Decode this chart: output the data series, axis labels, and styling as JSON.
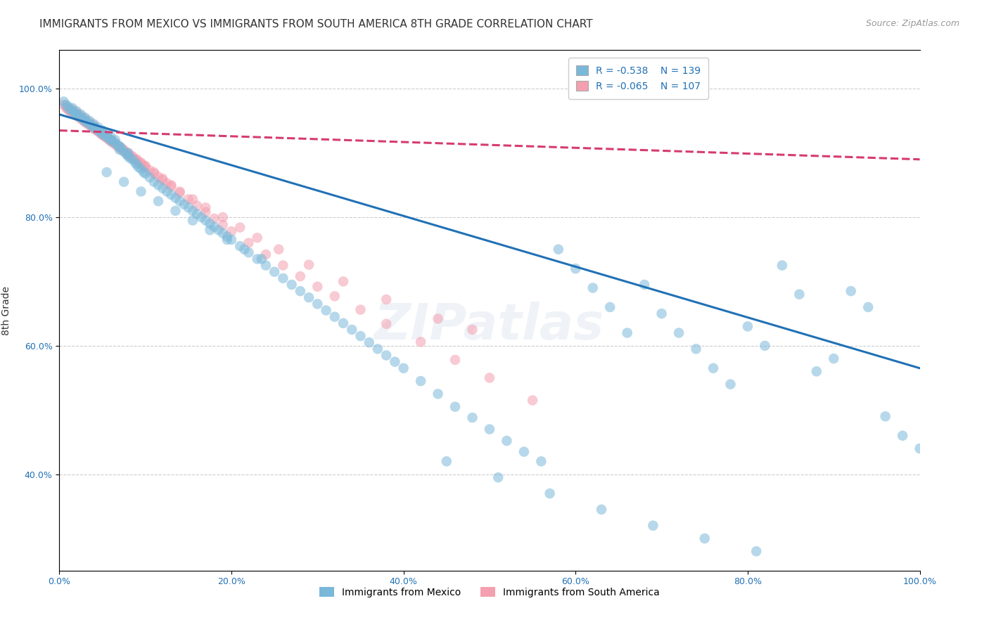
{
  "title": "IMMIGRANTS FROM MEXICO VS IMMIGRANTS FROM SOUTH AMERICA 8TH GRADE CORRELATION CHART",
  "source": "Source: ZipAtlas.com",
  "ylabel": "8th Grade",
  "xlim": [
    0.0,
    1.0
  ],
  "ylim": [
    0.25,
    1.06
  ],
  "ytick_labels": [
    "40.0%",
    "60.0%",
    "80.0%",
    "100.0%"
  ],
  "ytick_values": [
    0.4,
    0.6,
    0.8,
    1.0
  ],
  "xtick_labels": [
    "0.0%",
    "20.0%",
    "40.0%",
    "60.0%",
    "80.0%",
    "100.0%"
  ],
  "xtick_values": [
    0.0,
    0.2,
    0.4,
    0.6,
    0.8,
    1.0
  ],
  "blue_R": -0.538,
  "blue_N": 139,
  "pink_R": -0.065,
  "pink_N": 107,
  "blue_color": "#7ab8d9",
  "pink_color": "#f4a0b0",
  "blue_line_color": "#2171b5",
  "pink_line_color": "#d63b6e",
  "watermark": "ZIPatlas",
  "blue_scatter_x": [
    0.005,
    0.008,
    0.01,
    0.012,
    0.015,
    0.015,
    0.018,
    0.02,
    0.02,
    0.022,
    0.025,
    0.025,
    0.028,
    0.03,
    0.03,
    0.032,
    0.035,
    0.035,
    0.038,
    0.04,
    0.04,
    0.042,
    0.045,
    0.045,
    0.048,
    0.05,
    0.05,
    0.052,
    0.055,
    0.055,
    0.058,
    0.06,
    0.06,
    0.062,
    0.065,
    0.065,
    0.068,
    0.07,
    0.07,
    0.072,
    0.075,
    0.078,
    0.08,
    0.08,
    0.082,
    0.085,
    0.088,
    0.09,
    0.092,
    0.095,
    0.098,
    0.1,
    0.105,
    0.11,
    0.115,
    0.12,
    0.125,
    0.13,
    0.135,
    0.14,
    0.145,
    0.15,
    0.155,
    0.16,
    0.165,
    0.17,
    0.175,
    0.18,
    0.185,
    0.19,
    0.195,
    0.2,
    0.21,
    0.22,
    0.23,
    0.24,
    0.25,
    0.26,
    0.27,
    0.28,
    0.29,
    0.3,
    0.31,
    0.32,
    0.33,
    0.34,
    0.35,
    0.36,
    0.37,
    0.38,
    0.39,
    0.4,
    0.42,
    0.44,
    0.46,
    0.48,
    0.5,
    0.52,
    0.54,
    0.56,
    0.58,
    0.6,
    0.62,
    0.64,
    0.66,
    0.68,
    0.7,
    0.72,
    0.74,
    0.76,
    0.78,
    0.8,
    0.82,
    0.84,
    0.86,
    0.88,
    0.9,
    0.92,
    0.94,
    0.96,
    0.98,
    1.0,
    0.45,
    0.51,
    0.57,
    0.63,
    0.69,
    0.75,
    0.81,
    0.055,
    0.075,
    0.095,
    0.115,
    0.135,
    0.155,
    0.175,
    0.195,
    0.215,
    0.235
  ],
  "blue_scatter_y": [
    0.98,
    0.975,
    0.972,
    0.968,
    0.965,
    0.97,
    0.962,
    0.96,
    0.965,
    0.958,
    0.955,
    0.96,
    0.952,
    0.95,
    0.955,
    0.948,
    0.945,
    0.95,
    0.942,
    0.94,
    0.945,
    0.938,
    0.935,
    0.94,
    0.932,
    0.93,
    0.935,
    0.928,
    0.925,
    0.93,
    0.922,
    0.92,
    0.925,
    0.918,
    0.915,
    0.92,
    0.912,
    0.91,
    0.905,
    0.908,
    0.902,
    0.898,
    0.895,
    0.9,
    0.892,
    0.89,
    0.885,
    0.882,
    0.878,
    0.875,
    0.87,
    0.868,
    0.862,
    0.855,
    0.85,
    0.845,
    0.84,
    0.835,
    0.83,
    0.825,
    0.82,
    0.815,
    0.81,
    0.805,
    0.8,
    0.795,
    0.79,
    0.785,
    0.78,
    0.775,
    0.77,
    0.765,
    0.755,
    0.745,
    0.735,
    0.725,
    0.715,
    0.705,
    0.695,
    0.685,
    0.675,
    0.665,
    0.655,
    0.645,
    0.635,
    0.625,
    0.615,
    0.605,
    0.595,
    0.585,
    0.575,
    0.565,
    0.545,
    0.525,
    0.505,
    0.488,
    0.47,
    0.452,
    0.435,
    0.42,
    0.75,
    0.72,
    0.69,
    0.66,
    0.62,
    0.695,
    0.65,
    0.62,
    0.595,
    0.565,
    0.54,
    0.63,
    0.6,
    0.725,
    0.68,
    0.56,
    0.58,
    0.685,
    0.66,
    0.49,
    0.46,
    0.44,
    0.42,
    0.395,
    0.37,
    0.345,
    0.32,
    0.3,
    0.28,
    0.87,
    0.855,
    0.84,
    0.825,
    0.81,
    0.795,
    0.78,
    0.765,
    0.75,
    0.735
  ],
  "pink_scatter_x": [
    0.005,
    0.008,
    0.01,
    0.012,
    0.015,
    0.015,
    0.018,
    0.02,
    0.02,
    0.022,
    0.025,
    0.025,
    0.028,
    0.03,
    0.03,
    0.032,
    0.035,
    0.035,
    0.038,
    0.04,
    0.04,
    0.042,
    0.045,
    0.048,
    0.05,
    0.052,
    0.055,
    0.058,
    0.06,
    0.062,
    0.065,
    0.068,
    0.07,
    0.072,
    0.075,
    0.078,
    0.08,
    0.082,
    0.085,
    0.088,
    0.09,
    0.092,
    0.095,
    0.098,
    0.1,
    0.105,
    0.11,
    0.115,
    0.12,
    0.125,
    0.13,
    0.14,
    0.15,
    0.16,
    0.17,
    0.18,
    0.19,
    0.2,
    0.22,
    0.24,
    0.26,
    0.28,
    0.3,
    0.32,
    0.35,
    0.38,
    0.42,
    0.46,
    0.5,
    0.55,
    0.008,
    0.012,
    0.016,
    0.02,
    0.024,
    0.028,
    0.032,
    0.036,
    0.04,
    0.044,
    0.048,
    0.052,
    0.056,
    0.06,
    0.065,
    0.07,
    0.075,
    0.08,
    0.085,
    0.09,
    0.095,
    0.1,
    0.11,
    0.12,
    0.13,
    0.14,
    0.155,
    0.17,
    0.19,
    0.21,
    0.23,
    0.255,
    0.29,
    0.33,
    0.38,
    0.44,
    0.48
  ],
  "pink_scatter_y": [
    0.975,
    0.97,
    0.968,
    0.965,
    0.963,
    0.968,
    0.96,
    0.958,
    0.963,
    0.956,
    0.953,
    0.958,
    0.95,
    0.948,
    0.953,
    0.946,
    0.943,
    0.948,
    0.94,
    0.938,
    0.943,
    0.936,
    0.933,
    0.93,
    0.928,
    0.926,
    0.923,
    0.92,
    0.918,
    0.916,
    0.913,
    0.91,
    0.908,
    0.906,
    0.903,
    0.9,
    0.898,
    0.896,
    0.893,
    0.89,
    0.888,
    0.886,
    0.883,
    0.88,
    0.878,
    0.873,
    0.868,
    0.863,
    0.858,
    0.853,
    0.848,
    0.838,
    0.828,
    0.818,
    0.808,
    0.798,
    0.788,
    0.778,
    0.76,
    0.742,
    0.725,
    0.708,
    0.692,
    0.677,
    0.656,
    0.634,
    0.606,
    0.578,
    0.55,
    0.515,
    0.972,
    0.968,
    0.964,
    0.96,
    0.956,
    0.952,
    0.948,
    0.944,
    0.94,
    0.936,
    0.932,
    0.928,
    0.924,
    0.92,
    0.915,
    0.91,
    0.905,
    0.9,
    0.895,
    0.89,
    0.885,
    0.88,
    0.87,
    0.86,
    0.85,
    0.84,
    0.828,
    0.815,
    0.8,
    0.784,
    0.768,
    0.75,
    0.726,
    0.7,
    0.672,
    0.642,
    0.625
  ],
  "blue_line_x0": 0.0,
  "blue_line_y0": 0.96,
  "blue_line_x1": 1.0,
  "blue_line_y1": 0.565,
  "pink_line_x0": 0.0,
  "pink_line_y0": 0.935,
  "pink_line_x1": 1.0,
  "pink_line_y1": 0.89,
  "grid_color": "#c8c8c8",
  "background_color": "#ffffff",
  "title_fontsize": 11,
  "axis_label_fontsize": 10,
  "tick_fontsize": 9,
  "legend_fontsize": 10,
  "source_fontsize": 9
}
